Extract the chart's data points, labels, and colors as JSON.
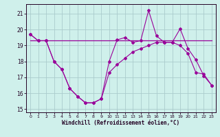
{
  "xlabel": "Windchill (Refroidissement éolien,°C)",
  "background_color": "#cff0eb",
  "grid_color": "#aacccc",
  "line_color": "#990099",
  "x_hours": [
    0,
    1,
    2,
    3,
    4,
    5,
    6,
    7,
    8,
    9,
    10,
    11,
    12,
    13,
    14,
    15,
    16,
    17,
    18,
    19,
    20,
    21,
    22,
    23
  ],
  "line1": [
    19.7,
    19.3,
    19.3,
    18.0,
    17.5,
    16.3,
    15.8,
    15.4,
    15.4,
    15.65,
    18.0,
    19.35,
    19.5,
    19.2,
    19.3,
    21.2,
    19.6,
    19.2,
    19.2,
    20.05,
    18.8,
    18.1,
    17.1,
    16.5
  ],
  "line2": [
    19.3,
    19.3,
    19.3,
    19.3,
    19.3,
    19.3,
    19.3,
    19.3,
    19.3,
    19.3,
    19.3,
    19.3,
    19.3,
    19.3,
    19.3,
    19.3,
    19.3,
    19.3,
    19.3,
    19.3,
    19.3,
    19.3,
    19.3,
    19.3
  ],
  "line3": [
    19.7,
    19.3,
    19.3,
    18.0,
    17.5,
    16.3,
    15.8,
    15.4,
    15.4,
    15.65,
    17.3,
    17.8,
    18.2,
    18.6,
    18.8,
    19.0,
    19.2,
    19.2,
    19.2,
    19.0,
    18.5,
    17.3,
    17.2,
    16.5
  ],
  "ylim": [
    14.8,
    21.6
  ],
  "yticks": [
    15,
    16,
    17,
    18,
    19,
    20,
    21
  ],
  "xlim": [
    -0.5,
    23.5
  ],
  "xticks": [
    0,
    1,
    2,
    3,
    4,
    5,
    6,
    7,
    8,
    9,
    10,
    11,
    12,
    13,
    14,
    15,
    16,
    17,
    18,
    19,
    20,
    21,
    22,
    23
  ]
}
